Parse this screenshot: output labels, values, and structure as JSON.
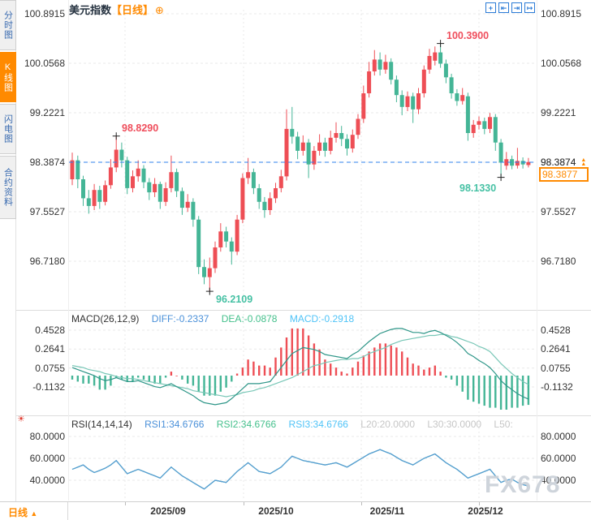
{
  "header": {
    "title": "美元指数",
    "period": "【日线】",
    "add_icon": "⊕"
  },
  "toolbar": {
    "icons": [
      {
        "name": "crosshair-icon",
        "glyph": "+"
      },
      {
        "name": "zoom-range-left-icon",
        "glyph": "⇤"
      },
      {
        "name": "zoom-range-right-icon",
        "glyph": "⇥"
      },
      {
        "name": "pan-latest-icon",
        "glyph": "↦"
      }
    ]
  },
  "sidebar": {
    "items": [
      {
        "label": "分时图",
        "active": false
      },
      {
        "label": "K线图",
        "active": true
      },
      {
        "label": "闪电图",
        "active": false
      },
      {
        "label": "合约资料",
        "active": false
      }
    ]
  },
  "price_tag": {
    "axis_label": "98.3874",
    "last_price": "98.3877",
    "arrow_glyph": "▲"
  },
  "bottom_bar": {
    "period_label": "日线",
    "arrow": "▲"
  },
  "watermark": {
    "text": "FX678"
  },
  "indicators": {
    "macd": {
      "title": "MACD(26,12,9)",
      "diff_label": "DIFF:-0.2337",
      "dea_label": "DEA:-0.0878",
      "macd_label": "MACD:-0.2918",
      "axis_labels": [
        "0.4528",
        "0.2641",
        "0.0755",
        "-0.1132"
      ],
      "axis_values": [
        0.4528,
        0.2641,
        0.0755,
        -0.1132
      ]
    },
    "rsi": {
      "title": "RSI(14,14,14)",
      "rsi1_label": "RSI1:34.6766",
      "rsi2_label": "RSI2:34.6766",
      "rsi3_label": "RSI3:34.6766",
      "l20_label": "L20:20.0000",
      "l30_label": "L30:30.0000",
      "l50_label": "L50:",
      "settings_icon": "☀",
      "axis_labels": [
        "80.0000",
        "60.0000",
        "40.0000"
      ],
      "axis_values": [
        80,
        60,
        40
      ]
    }
  },
  "colors": {
    "up": "#ee4e55",
    "down": "#44b596",
    "annotation_red": "#ef4e5c",
    "annotation_teal": "#46c1a4",
    "accent_orange": "#ff8a00",
    "price_line_blue": "#2f80ed",
    "diff_text": "#4a90d9",
    "dea_text": "#45c08c",
    "macd_text": "#4fc3f7",
    "macd_line_dark": "#2e9688",
    "macd_line_light": "#79c7b7",
    "rsi_line_blue": "#5b9bd5",
    "rsi_line_green": "#45c08c",
    "rsi_line_cyan": "#4fc3f7",
    "axis_text": "#333333",
    "muted_text": "#c6c6c6",
    "grid": "#e9e9e9",
    "border": "#dddddd",
    "sidebar_text": "#3a6bb0",
    "toolbar_blue": "#2b7bd6",
    "watermark": "#ccd2da"
  },
  "chart_data": {
    "type": "candlestick",
    "title": "美元指数 日线",
    "y_axis_labels": [
      "100.8915",
      "100.0568",
      "99.2221",
      "98.3874",
      "97.5527",
      "96.7180"
    ],
    "y_axis_values": [
      100.8915,
      100.0568,
      99.2221,
      98.3874,
      97.5527,
      96.718
    ],
    "x_axis_labels": [
      "2025/09",
      "2025/10",
      "2025/11",
      "2025/12"
    ],
    "price_line_value": 98.3874,
    "current_price": 98.3877,
    "annotations": [
      {
        "text": "98.8290",
        "index": 8,
        "value": 98.829,
        "color": "#ef4e5c",
        "placement": "above-right"
      },
      {
        "text": "100.3900",
        "index": 67,
        "value": 100.39,
        "color": "#ef4e5c",
        "placement": "above-right"
      },
      {
        "text": "96.2109",
        "index": 25,
        "value": 96.2109,
        "color": "#46c1a4",
        "placement": "below-right"
      },
      {
        "text": "98.1330",
        "index": 78,
        "value": 98.133,
        "color": "#46c1a4",
        "placement": "below-left"
      }
    ],
    "candles": {
      "open": [
        98.1,
        98.42,
        98.1,
        97.78,
        97.65,
        97.92,
        97.72,
        98.0,
        98.3,
        98.6,
        98.42,
        97.95,
        98.15,
        98.28,
        98.05,
        97.88,
        98.02,
        97.72,
        97.95,
        98.22,
        97.9,
        97.62,
        97.72,
        97.42,
        96.62,
        96.45,
        96.6,
        96.95,
        97.22,
        97.05,
        96.88,
        97.42,
        98.12,
        98.22,
        97.95,
        97.72,
        97.58,
        97.78,
        97.95,
        98.15,
        98.95,
        98.82,
        98.58,
        98.72,
        98.35,
        98.58,
        98.72,
        98.58,
        98.8,
        98.88,
        98.78,
        98.62,
        98.85,
        99.12,
        99.55,
        99.92,
        100.12,
        99.95,
        100.08,
        99.78,
        99.52,
        99.32,
        99.5,
        99.28,
        99.55,
        99.95,
        100.1,
        100.24,
        100.05,
        99.82,
        99.55,
        99.42,
        99.5,
        98.88,
        99.02,
        99.08,
        98.95,
        99.15,
        98.72,
        98.33,
        98.44,
        98.33,
        98.41,
        98.34
      ],
      "close": [
        98.42,
        98.1,
        97.78,
        97.65,
        97.92,
        97.72,
        98.0,
        98.3,
        98.6,
        98.42,
        97.95,
        98.15,
        98.28,
        98.05,
        97.88,
        98.02,
        97.72,
        97.95,
        98.22,
        97.9,
        97.62,
        97.72,
        97.42,
        96.62,
        96.45,
        96.6,
        96.95,
        97.22,
        97.05,
        96.88,
        97.42,
        98.12,
        98.22,
        97.95,
        97.72,
        97.58,
        97.78,
        97.95,
        98.15,
        98.95,
        98.82,
        98.58,
        98.72,
        98.35,
        98.58,
        98.72,
        98.58,
        98.8,
        98.88,
        98.78,
        98.62,
        98.85,
        99.12,
        99.55,
        99.92,
        100.12,
        99.95,
        100.08,
        99.78,
        99.52,
        99.32,
        99.5,
        99.28,
        99.55,
        99.95,
        100.18,
        100.24,
        100.05,
        99.82,
        99.55,
        99.42,
        99.52,
        98.88,
        99.02,
        99.08,
        98.95,
        99.15,
        98.72,
        98.38,
        98.44,
        98.33,
        98.41,
        98.35,
        98.39
      ],
      "high": [
        98.55,
        98.5,
        98.16,
        97.92,
        98.02,
        97.99,
        98.08,
        98.44,
        98.83,
        98.72,
        98.48,
        98.25,
        98.42,
        98.34,
        98.12,
        98.12,
        98.06,
        98.05,
        98.5,
        98.28,
        97.96,
        97.85,
        97.78,
        97.48,
        96.75,
        96.78,
        97.05,
        97.36,
        97.3,
        97.12,
        97.5,
        98.2,
        98.46,
        98.28,
        98.02,
        97.8,
        97.88,
        98.04,
        98.26,
        99.28,
        99.32,
        98.9,
        98.84,
        98.78,
        98.66,
        98.86,
        98.8,
        98.92,
        99.06,
        99.0,
        98.86,
        98.94,
        99.2,
        99.68,
        100.08,
        100.28,
        100.24,
        100.2,
        100.14,
        99.85,
        99.6,
        99.58,
        99.56,
        99.64,
        100.02,
        100.3,
        100.34,
        100.39,
        100.12,
        99.88,
        99.62,
        99.64,
        99.56,
        99.1,
        99.16,
        99.14,
        99.22,
        99.2,
        98.78,
        98.56,
        98.5,
        98.63,
        98.47,
        98.46
      ],
      "low": [
        98.0,
        97.95,
        97.65,
        97.52,
        97.58,
        97.6,
        97.66,
        97.94,
        98.22,
        98.3,
        97.85,
        97.88,
        98.06,
        97.95,
        97.75,
        97.8,
        97.6,
        97.65,
        97.88,
        97.8,
        97.5,
        97.55,
        97.3,
        96.5,
        96.33,
        96.21,
        96.52,
        96.88,
        96.95,
        96.66,
        96.82,
        97.36,
        98.02,
        97.85,
        97.6,
        97.45,
        97.5,
        97.7,
        97.88,
        98.08,
        98.7,
        98.44,
        98.5,
        98.12,
        98.26,
        98.5,
        98.48,
        98.52,
        98.72,
        98.66,
        98.5,
        98.55,
        98.78,
        99.05,
        99.48,
        99.85,
        99.85,
        99.88,
        99.7,
        99.4,
        99.18,
        99.25,
        99.05,
        99.2,
        99.48,
        99.88,
        100.02,
        99.98,
        99.72,
        99.46,
        99.34,
        99.36,
        98.75,
        98.8,
        98.94,
        98.86,
        98.88,
        98.58,
        98.13,
        98.26,
        98.27,
        98.28,
        98.28,
        98.3
      ]
    },
    "macd": {
      "diff": [
        0.08,
        0.06,
        0.04,
        0.02,
        0.0,
        -0.03,
        -0.05,
        -0.04,
        -0.02,
        -0.04,
        -0.06,
        -0.06,
        -0.05,
        -0.07,
        -0.09,
        -0.11,
        -0.12,
        -0.1,
        -0.08,
        -0.11,
        -0.14,
        -0.17,
        -0.2,
        -0.24,
        -0.27,
        -0.28,
        -0.29,
        -0.28,
        -0.27,
        -0.23,
        -0.18,
        -0.13,
        -0.08,
        -0.08,
        -0.08,
        -0.07,
        -0.06,
        0.01,
        0.08,
        0.15,
        0.22,
        0.25,
        0.28,
        0.27,
        0.26,
        0.24,
        0.21,
        0.2,
        0.19,
        0.18,
        0.17,
        0.21,
        0.24,
        0.29,
        0.34,
        0.38,
        0.42,
        0.44,
        0.46,
        0.47,
        0.47,
        0.45,
        0.43,
        0.43,
        0.42,
        0.44,
        0.45,
        0.43,
        0.4,
        0.37,
        0.33,
        0.28,
        0.22,
        0.19,
        0.15,
        0.12,
        0.08,
        0.02,
        -0.05,
        -0.1,
        -0.14,
        -0.18,
        -0.21,
        -0.2337
      ],
      "dea": [
        0.1,
        0.09,
        0.08,
        0.06,
        0.05,
        0.04,
        0.02,
        0.01,
        -0.01,
        -0.02,
        -0.03,
        -0.03,
        -0.04,
        -0.05,
        -0.06,
        -0.07,
        -0.08,
        -0.09,
        -0.1,
        -0.11,
        -0.12,
        -0.13,
        -0.15,
        -0.16,
        -0.17,
        -0.18,
        -0.19,
        -0.2,
        -0.21,
        -0.2,
        -0.19,
        -0.17,
        -0.16,
        -0.15,
        -0.13,
        -0.12,
        -0.1,
        -0.08,
        -0.06,
        -0.04,
        -0.02,
        0.01,
        0.04,
        0.07,
        0.1,
        0.11,
        0.13,
        0.14,
        0.15,
        0.16,
        0.16,
        0.17,
        0.17,
        0.19,
        0.22,
        0.24,
        0.26,
        0.28,
        0.31,
        0.33,
        0.35,
        0.36,
        0.37,
        0.38,
        0.39,
        0.4,
        0.4,
        0.41,
        0.41,
        0.39,
        0.38,
        0.36,
        0.34,
        0.32,
        0.29,
        0.27,
        0.24,
        0.18,
        0.12,
        0.07,
        0.02,
        -0.02,
        -0.06,
        -0.0878
      ]
    },
    "rsi_values": [
      50,
      52,
      54,
      50,
      47,
      49,
      51,
      54,
      58,
      52,
      46,
      48,
      50,
      48,
      46,
      44,
      42,
      47,
      52,
      48,
      44,
      41,
      38,
      35,
      32,
      36,
      40,
      39,
      38,
      43,
      48,
      52,
      56,
      52,
      48,
      47,
      46,
      49,
      52,
      57,
      62,
      60,
      58,
      57,
      56,
      55,
      54,
      55,
      56,
      54,
      52,
      55,
      58,
      61,
      64,
      66,
      68,
      66,
      64,
      61,
      58,
      56,
      54,
      57,
      60,
      62,
      64,
      60,
      56,
      53,
      50,
      46,
      42,
      44,
      46,
      48,
      50,
      44,
      38,
      40,
      41,
      38,
      36,
      34.68
    ]
  }
}
